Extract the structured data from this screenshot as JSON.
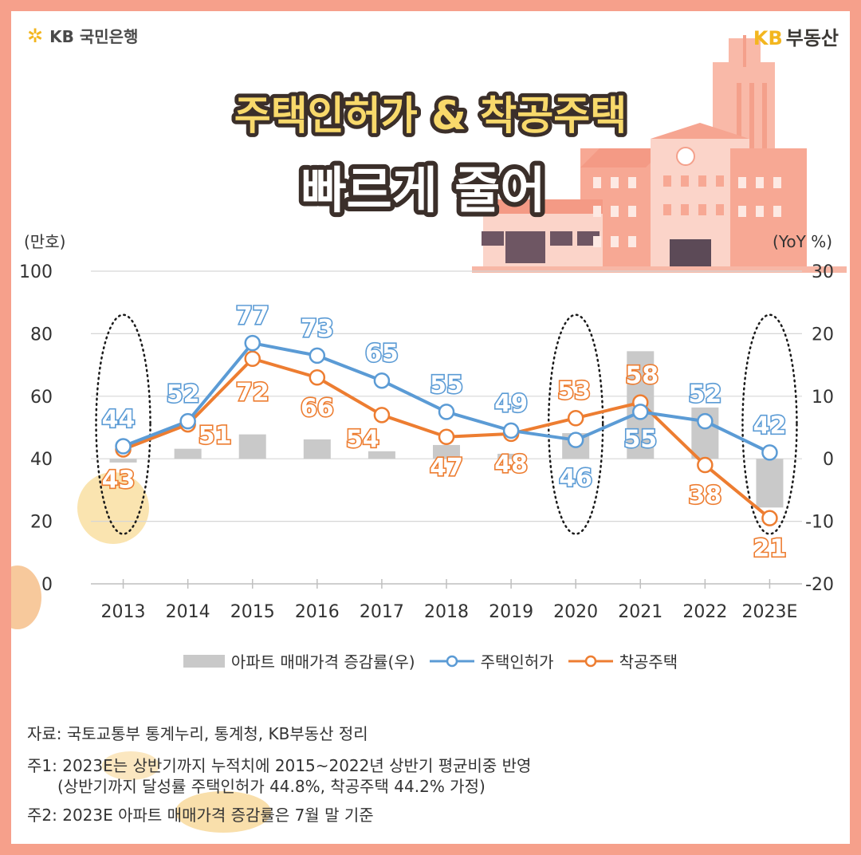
{
  "header": {
    "bank_logo": "KB 국민은행",
    "realestate_logo_kb": "KB",
    "realestate_logo_text": "부동산",
    "title_line1": "주택인허가 & 착공주택",
    "title_line2": "빠르게 줄어"
  },
  "colors": {
    "permit": "#5b9bd5",
    "start": "#ed7d31",
    "bar": "#c9c9c9",
    "frame": "#f6a08b",
    "title_outline": "#3b2f2a",
    "title_fill": "#f8d96b"
  },
  "chart_data": {
    "type": "line",
    "left_axis_label": "(만호)",
    "right_axis_label": "(YoY %)",
    "categories": [
      "2013",
      "2014",
      "2015",
      "2016",
      "2017",
      "2018",
      "2019",
      "2020",
      "2021",
      "2022",
      "2023E"
    ],
    "ylim_left": [
      0,
      100
    ],
    "yticks_left": [
      "0",
      "20",
      "40",
      "60",
      "80",
      "100"
    ],
    "ylim_right": [
      -20,
      30
    ],
    "yticks_right": [
      "-20",
      "-10",
      "0",
      "10",
      "20",
      "30"
    ],
    "grid": true,
    "series": [
      {
        "name": "아파트 매매가격 증감률(우)",
        "kind": "bar",
        "axis": "right",
        "values": [
          -0.6,
          1.6,
          3.9,
          3.1,
          1.2,
          2.2,
          0.8,
          4.1,
          17.2,
          8.2,
          -7.8
        ]
      },
      {
        "name": "주택인허가",
        "kind": "line",
        "axis": "left",
        "values": [
          44,
          52,
          77,
          73,
          65,
          55,
          49,
          46,
          55,
          52,
          42
        ],
        "labels": [
          "44",
          "52",
          "77",
          "73",
          "65",
          "55",
          "49",
          "46",
          "55",
          "52",
          "42"
        ]
      },
      {
        "name": "착공주택",
        "kind": "line",
        "axis": "left",
        "values": [
          43,
          51,
          72,
          66,
          54,
          47,
          48,
          53,
          58,
          38,
          21
        ],
        "labels": [
          "43",
          "51",
          "72",
          "66",
          "54",
          "47",
          "48",
          "53",
          "58",
          "38",
          "21"
        ]
      }
    ],
    "highlighted_years": [
      "2013",
      "2020",
      "2023E"
    ],
    "legend_position": "bottom"
  },
  "notes": {
    "source": "자료: 국토교통부 통계누리, 통계청, KB부동산 정리",
    "note1": "주1: 2023E는 상반기까지 누적치에 2015~2022년 상반기 평균비중 반영",
    "note1b": "(상반기까지 달성률 주택인허가 44.8%, 착공주택 44.2% 가정)",
    "note2": "주2: 2023E 아파트 매매가격 증감률은 7월 말 기준"
  }
}
